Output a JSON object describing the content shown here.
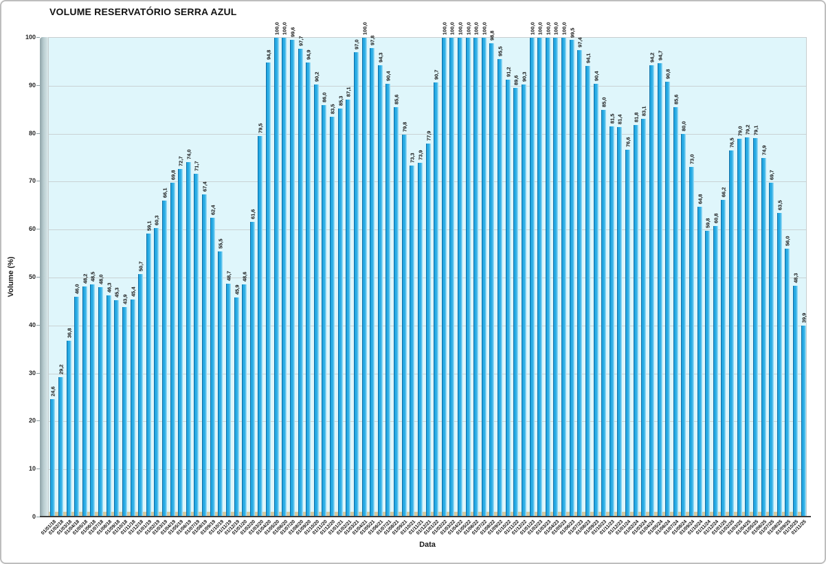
{
  "header": {
    "title": "VOLUME RESERVATÓRIO SERRA AZUL"
  },
  "chart_data": {
    "type": "bar",
    "title": "VOLUME RESERVATÓRIO SERRA AZUL",
    "xlabel": "Data",
    "ylabel": "Volume (%)",
    "ylim": [
      0,
      100
    ],
    "yticks": [
      0,
      10,
      20,
      30,
      40,
      50,
      60,
      70,
      80,
      90,
      100
    ],
    "grid": "horizontal",
    "legend_position": "none",
    "value_labels": "rotated-vertical, comma decimal",
    "colors": {
      "bar_main": "#2cade5",
      "bar_edge_dark": "#0a6da6",
      "bar_side_light": "#aee5f8",
      "plot_background": "#dff6fb",
      "gridline": "#c9d2d3",
      "wall": "#b9cdd0",
      "floor": "#d5c9a0",
      "text": "#111111"
    },
    "categories": [
      "01/01/18",
      "01/02/18",
      "01/03/18",
      "01/04/18",
      "01/05/18",
      "01/06/18",
      "01/07/18",
      "01/08/18",
      "01/09/18",
      "01/10/18",
      "01/11/18",
      "01/12/18",
      "01/01/19",
      "01/02/19",
      "01/03/19",
      "01/04/19",
      "01/05/19",
      "01/06/19",
      "01/07/19",
      "01/08/19",
      "01/09/19",
      "01/10/19",
      "01/11/19",
      "01/12/19",
      "01/01/20",
      "01/02/20",
      "01/03/20",
      "01/04/20",
      "01/05/20",
      "01/06/20",
      "01/07/20",
      "01/08/20",
      "01/09/20",
      "01/10/20",
      "01/11/20",
      "01/12/20",
      "01/01/21",
      "01/02/21",
      "01/03/21",
      "01/04/21",
      "01/05/21",
      "01/06/21",
      "01/07/21",
      "01/08/21",
      "01/09/21",
      "01/10/21",
      "01/11/21",
      "01/12/21",
      "01/01/22",
      "01/02/22",
      "01/03/22",
      "01/04/22",
      "01/05/22",
      "01/06/22",
      "01/07/22",
      "01/08/22",
      "01/09/22",
      "01/10/22",
      "01/11/22",
      "01/12/22",
      "01/01/23",
      "01/02/23",
      "01/03/23",
      "01/04/23",
      "01/05/23",
      "01/06/23",
      "01/07/23",
      "01/08/23",
      "01/09/23",
      "01/10/23",
      "01/11/23",
      "01/12/23",
      "01/01/24",
      "01/02/24",
      "01/03/24",
      "01/04/24",
      "01/05/24",
      "01/06/24",
      "01/07/24",
      "01/08/24",
      "01/09/24",
      "01/10/24",
      "01/11/24",
      "01/12/24",
      "01/01/25",
      "01/02/25",
      "01/03/25",
      "01/04/25",
      "01/05/25",
      "01/06/25",
      "01/07/25",
      "01/08/25",
      "01/09/25",
      "01/10/25",
      "01/11/25"
    ],
    "values": [
      24.6,
      29.2,
      36.8,
      46.0,
      48.2,
      48.5,
      48.0,
      46.3,
      45.3,
      43.9,
      45.4,
      50.7,
      59.1,
      60.3,
      66.1,
      69.8,
      72.7,
      74.0,
      71.7,
      67.4,
      62.4,
      55.5,
      48.7,
      45.9,
      48.6,
      61.6,
      79.5,
      94.8,
      100.0,
      100.0,
      99.6,
      97.7,
      94.9,
      90.2,
      86.0,
      83.5,
      85.3,
      87.1,
      97.0,
      100.0,
      97.8,
      94.3,
      90.4,
      85.6,
      79.8,
      73.3,
      73.9,
      77.9,
      90.7,
      100.0,
      100.0,
      100.0,
      100.0,
      100.0,
      100.0,
      98.8,
      95.5,
      91.2,
      89.6,
      90.3,
      100.0,
      100.0,
      100.0,
      100.0,
      100.0,
      99.5,
      97.4,
      94.1,
      90.4,
      85.0,
      81.5,
      81.4,
      76.6,
      81.8,
      83.1,
      94.2,
      94.7,
      90.8,
      85.6,
      80.0,
      73.0,
      64.8,
      59.8,
      60.8,
      66.2,
      76.5,
      79.0,
      79.2,
      79.1,
      74.9,
      69.7,
      63.5,
      56.0,
      48.3,
      39.9
    ]
  }
}
